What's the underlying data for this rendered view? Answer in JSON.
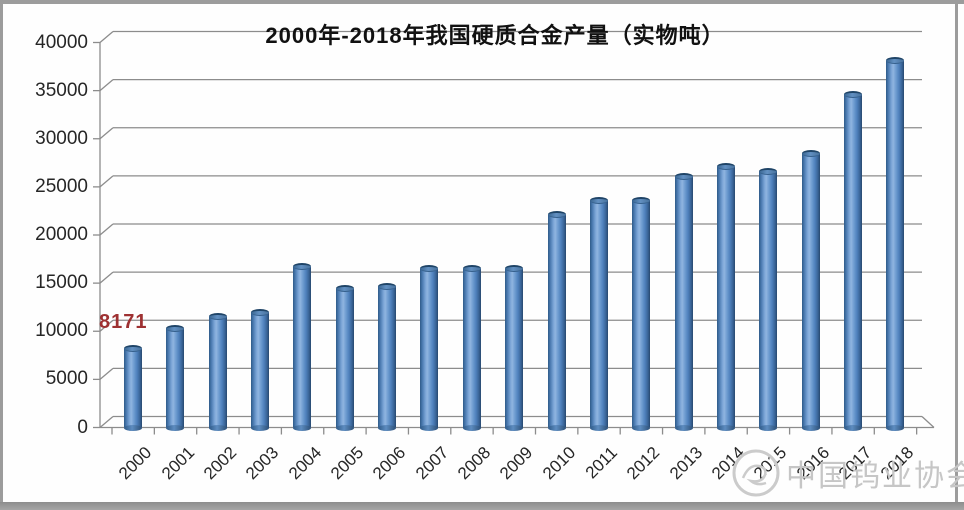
{
  "chart_data": {
    "type": "bar",
    "style": "3d-cylinder",
    "title": "2000年-2018年我国硬质合金产量（实物吨）",
    "categories": [
      "2000",
      "2001",
      "2002",
      "2003",
      "2004",
      "2005",
      "2006",
      "2007",
      "2008",
      "2009",
      "2010",
      "2011",
      "2012",
      "2013",
      "2014",
      "2015",
      "2016",
      "2017",
      "2018"
    ],
    "values": [
      8171,
      10300,
      11500,
      12000,
      16700,
      14400,
      14700,
      16500,
      16500,
      16500,
      22100,
      23600,
      23600,
      26100,
      27100,
      26600,
      28500,
      34600,
      38100
    ],
    "xlabel": "",
    "ylabel": "",
    "ylim": [
      0,
      40000
    ],
    "ytick_step": 5000,
    "grid": true,
    "legend": false,
    "bar_color": "#4f81bd",
    "gridline_color": "#8c8c8c",
    "annotations": [
      {
        "text": "8171",
        "category": "2000",
        "color": "#9e3132"
      }
    ]
  },
  "watermark": {
    "text": "中国钨业协会",
    "logo": "swan-circle-logo",
    "color": "#c6c6c6"
  },
  "frame": {
    "border_color": "#9c9c9c",
    "bottom_bar_color": "#9a9a9a"
  }
}
